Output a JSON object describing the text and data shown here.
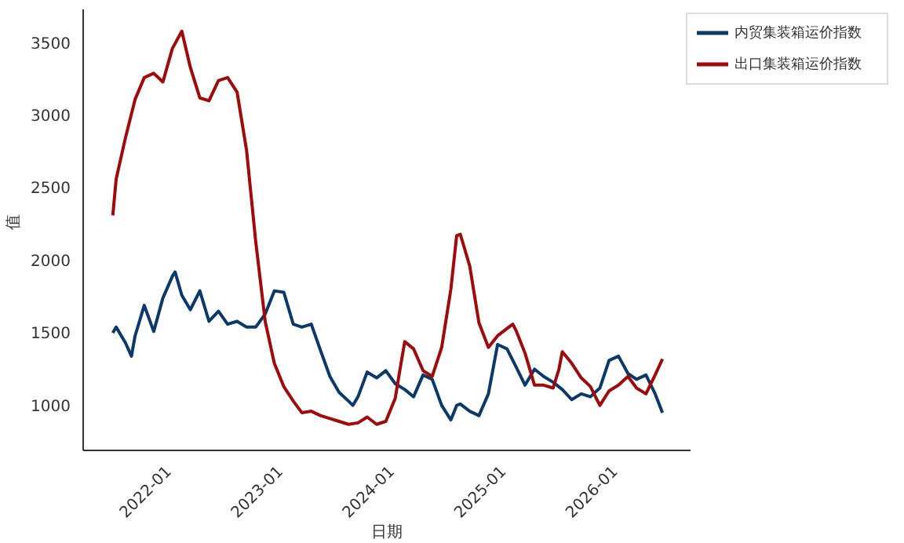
{
  "chart_data": {
    "type": "line",
    "xlabel": "日期",
    "ylabel": "值",
    "xlim": [
      "2021-03-15",
      "2026-08-25"
    ],
    "xticks": [
      "2022-01",
      "2023-01",
      "2024-01",
      "2025-01",
      "2026-01"
    ],
    "ylim": [
      690,
      3730
    ],
    "yticks": [
      1000,
      1500,
      2000,
      2500,
      3000,
      3500
    ],
    "grid": false,
    "legend": "top right",
    "marker": "none",
    "line_style": "solid",
    "series": [
      {
        "name": "内贸集装箱运价指数",
        "color": "#0b3a6a",
        "x": [
          "2021-06-20",
          "2021-07",
          "2021-08",
          "2021-08-20",
          "2021-09",
          "2021-10",
          "2021-11",
          "2021-12",
          "2022-01",
          "2022-01-10",
          "2022-02",
          "2022-03",
          "2022-04",
          "2022-05",
          "2022-06",
          "2022-07",
          "2022-08",
          "2022-09",
          "2022-10",
          "2022-11",
          "2022-12",
          "2023-01",
          "2023-02",
          "2023-03",
          "2023-04",
          "2023-05",
          "2023-06",
          "2023-07",
          "2023-08",
          "2023-08-15",
          "2023-09",
          "2023-10",
          "2023-11",
          "2023-12",
          "2024-01",
          "2024-02",
          "2024-03",
          "2024-04",
          "2024-05",
          "2024-06",
          "2024-07",
          "2024-07-20",
          "2024-08",
          "2024-09",
          "2024-10",
          "2024-11",
          "2024-12",
          "2025-01",
          "2025-02",
          "2025-03",
          "2025-04",
          "2025-05",
          "2025-06",
          "2025-07",
          "2025-08",
          "2025-09",
          "2025-10",
          "2025-11",
          "2025-12",
          "2026-01",
          "2026-02",
          "2026-03",
          "2026-04",
          "2026-05",
          "2026-05-25"
        ],
        "values": [
          1500,
          1540,
          1430,
          1340,
          1480,
          1690,
          1510,
          1740,
          1890,
          1920,
          1760,
          1660,
          1790,
          1580,
          1650,
          1560,
          1580,
          1540,
          1540,
          1630,
          1790,
          1780,
          1560,
          1540,
          1560,
          1380,
          1200,
          1090,
          1030,
          1000,
          1060,
          1230,
          1190,
          1240,
          1150,
          1110,
          1060,
          1210,
          1180,
          1000,
          900,
          1000,
          1010,
          960,
          930,
          1080,
          1420,
          1390,
          1260,
          1140,
          1250,
          1200,
          1160,
          1110,
          1040,
          1080,
          1060,
          1120,
          1310,
          1340,
          1220,
          1180,
          1210,
          1080,
          950
        ]
      },
      {
        "name": "出口集装箱运价指数",
        "color": "#a00a0a",
        "x": [
          "2021-06-20",
          "2021-07",
          "2021-08",
          "2021-09",
          "2021-10",
          "2021-11",
          "2021-12",
          "2022-01",
          "2022-02",
          "2022-03",
          "2022-04",
          "2022-05",
          "2022-06",
          "2022-07",
          "2022-08",
          "2022-09",
          "2022-10",
          "2022-11",
          "2022-12",
          "2023-01",
          "2023-02",
          "2023-03",
          "2023-04",
          "2023-05",
          "2023-06",
          "2023-07",
          "2023-08",
          "2023-09",
          "2023-10",
          "2023-11",
          "2023-12",
          "2024-01",
          "2024-01-15",
          "2024-02",
          "2024-03",
          "2024-04",
          "2024-05",
          "2024-06",
          "2024-07",
          "2024-07-20",
          "2024-08",
          "2024-09",
          "2024-10",
          "2024-11",
          "2024-12",
          "2025-01",
          "2025-01-20",
          "2025-02",
          "2025-03",
          "2025-04",
          "2025-05",
          "2025-06",
          "2025-06-20",
          "2025-07",
          "2025-08",
          "2025-09",
          "2025-10",
          "2025-11",
          "2025-12",
          "2026-01",
          "2026-02",
          "2026-03",
          "2026-04",
          "2026-05",
          "2026-05-25"
        ],
        "values": [
          2310,
          2560,
          2850,
          3110,
          3260,
          3290,
          3230,
          3460,
          3580,
          3330,
          3120,
          3100,
          3240,
          3260,
          3160,
          2760,
          2130,
          1580,
          1290,
          1130,
          1030,
          950,
          960,
          930,
          910,
          890,
          870,
          880,
          920,
          870,
          890,
          1050,
          1230,
          1440,
          1390,
          1240,
          1200,
          1400,
          1800,
          2170,
          2180,
          1960,
          1570,
          1400,
          1480,
          1530,
          1560,
          1510,
          1360,
          1140,
          1140,
          1120,
          1250,
          1370,
          1290,
          1190,
          1130,
          1000,
          1100,
          1140,
          1200,
          1120,
          1080,
          1210,
          1320
        ]
      }
    ]
  }
}
